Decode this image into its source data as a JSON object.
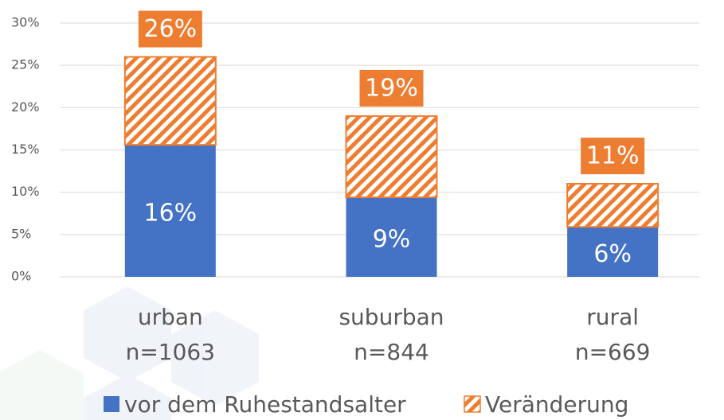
{
  "chart_data": {
    "type": "stacked_bar",
    "categories": [
      "urban",
      "suburban",
      "rural"
    ],
    "n_labels": [
      "n=1063",
      "n=844",
      "n=669"
    ],
    "series": [
      {
        "name": "vor dem Ruhestandsalter",
        "color": "#4472c4",
        "values": [
          15.6,
          9.4,
          5.9
        ],
        "value_labels": [
          "16%",
          "9%",
          "6%"
        ]
      },
      {
        "name": "Veränderung",
        "color": "#ed7d31",
        "hatch": true,
        "values": [
          10.4,
          9.6,
          5.1
        ]
      }
    ],
    "total_labels": [
      "26%",
      "19%",
      "11%"
    ],
    "ylim": [
      0,
      30
    ],
    "yticks": [
      {
        "value": 0,
        "label": "0%"
      },
      {
        "value": 5,
        "label": "5%"
      },
      {
        "value": 10,
        "label": "10%"
      },
      {
        "value": 15,
        "label": "15%"
      },
      {
        "value": 20,
        "label": "20%"
      },
      {
        "value": 25,
        "label": "25%"
      },
      {
        "value": 30,
        "label": "30%"
      }
    ],
    "grid": true,
    "legend": "bottom"
  }
}
